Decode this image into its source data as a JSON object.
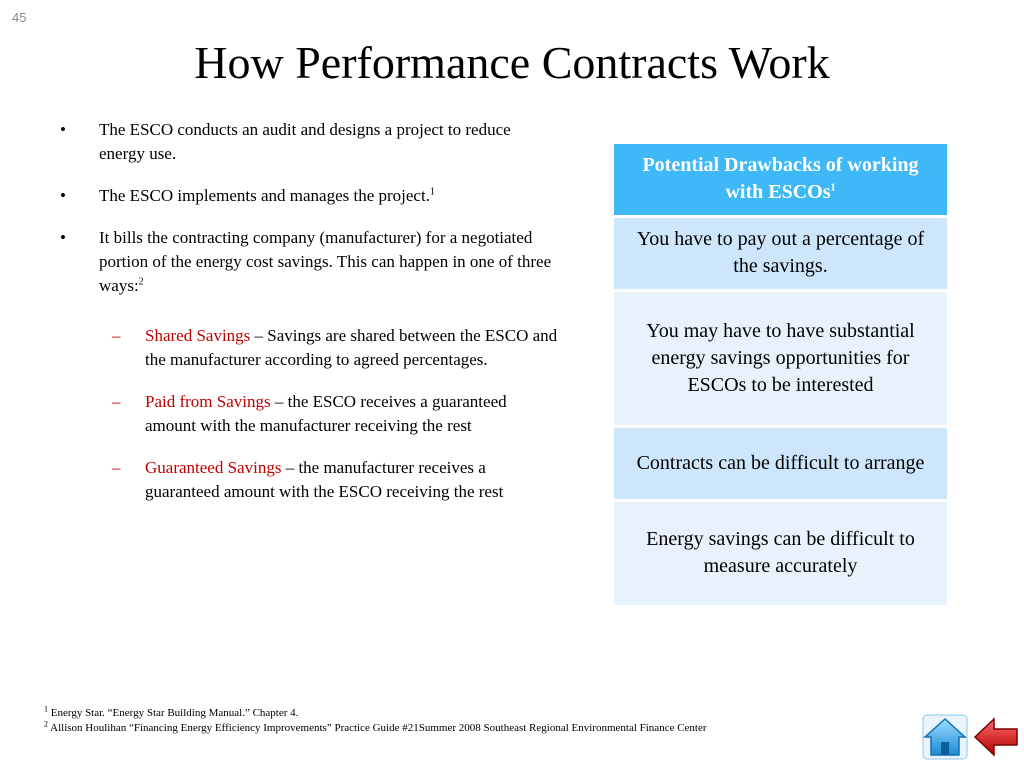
{
  "slide_number": "45",
  "title": "How Performance Contracts Work",
  "bullets": [
    {
      "text": "The ESCO conducts an audit and designs a project to reduce energy use.",
      "sup": ""
    },
    {
      "text": "The ESCO implements and manages the project.",
      "sup": "1"
    },
    {
      "text": "It bills the contracting company (manufacturer) for a negotiated portion of the energy cost savings.  This can happen in one of three ways:",
      "sup": "2"
    }
  ],
  "sub_bullets": [
    {
      "term": "Shared Savings",
      "text": " – Savings are shared between the ESCO and the manufacturer according to agreed percentages."
    },
    {
      "term": "Paid from Savings",
      "text": " – the ESCO receives a guaranteed amount with the manufacturer receiving the rest"
    },
    {
      "term": "Guaranteed Savings",
      "text": " – the manufacturer receives a guaranteed amount with the ESCO receiving the rest"
    }
  ],
  "table": {
    "header": "Potential Drawbacks of working with ESCOs",
    "header_sup": "1",
    "rows": [
      "You have to pay out a percentage of the savings.",
      "You may have to have substantial energy savings opportunities for ESCOs to be interested",
      "Contracts can be difficult to arrange",
      "Energy savings can be difficult to measure accurately"
    ]
  },
  "footnotes": [
    {
      "num": "1",
      "text": " Energy Star. “Energy Star Building Manual.” Chapter 4."
    },
    {
      "num": "2",
      "text": " Allison Houlihan “Financing Energy Efficiency Improvements” Practice Guide #21Summer 2008 Southeast Regional Environmental Finance Center"
    }
  ],
  "nav": {
    "home_icon": "home-icon",
    "back_icon": "back-arrow-icon"
  },
  "colors": {
    "accent": "#c00000",
    "table_header": "#3fb8f7",
    "row_dark": "#cde6fb",
    "row_light": "#e7f2fc"
  }
}
